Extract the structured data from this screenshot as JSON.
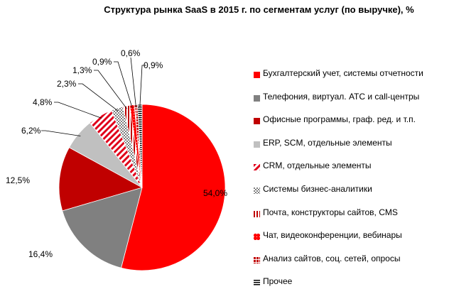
{
  "chart_data": {
    "type": "pie",
    "title": "Структура рынка SaaS в 2015 г. по сегментам услуг (по выручке), %",
    "legend_position": "right",
    "start_angle": "12 o'clock, clockwise",
    "slices": [
      {
        "name": "Бухгалтерский учет, системы отчетности",
        "value": 54.0,
        "label": "54,0%",
        "color": "#ff0000",
        "pattern": "solid"
      },
      {
        "name": "Телефония, виртуал. АТС и call-центры",
        "value": 16.4,
        "label": "16,4%",
        "color": "#808080",
        "pattern": "solid"
      },
      {
        "name": "Офисные программы, граф. ред. и т.п.",
        "value": 12.5,
        "label": "12,5%",
        "color": "#c00000",
        "pattern": "solid"
      },
      {
        "name": "ERP, SCM, отдельные элементы",
        "value": 6.2,
        "label": "6,2%",
        "color": "#c0c0c0",
        "pattern": "solid"
      },
      {
        "name": "CRM, отдельные элементы",
        "value": 4.8,
        "label": "4,8%",
        "color": "#e0001a",
        "pattern": "diagonal"
      },
      {
        "name": "Системы бизнес-аналитики",
        "value": 2.3,
        "label": "2,3%",
        "color": "#808080",
        "pattern": "checker"
      },
      {
        "name": "Почта, конструкторы сайтов, CMS",
        "value": 1.3,
        "label": "1,3%",
        "color": "#c00000",
        "pattern": "vertical"
      },
      {
        "name": "Чат, видеоконференции, вебинары",
        "value": 0.9,
        "label": "0,9%",
        "color": "#ff0000",
        "pattern": "dots"
      },
      {
        "name": "Анализ сайтов, соц. сетей, опросы",
        "value": 0.6,
        "label": "0,6%",
        "color": "#c00000",
        "pattern": "sparse"
      },
      {
        "name": "Прочее",
        "value": 0.9,
        "label": "0,9%",
        "color": "#000000",
        "pattern": "horizontal"
      }
    ]
  }
}
